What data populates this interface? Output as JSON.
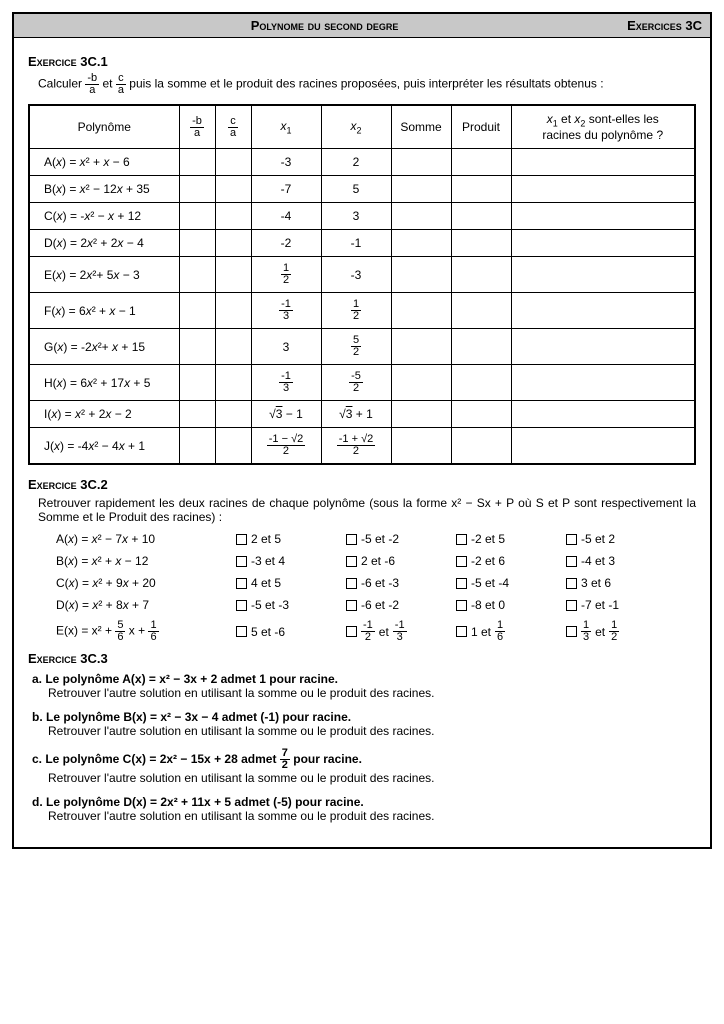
{
  "header": {
    "title": "Polynome du second degre",
    "right": "Exercices 3C"
  },
  "ex1": {
    "title": "Exercice 3C.1",
    "intro_pre": "Calculer ",
    "intro_mid": " et ",
    "intro_post": " puis la somme et le produit des racines proposées, puis interpréter les résultats obtenus :",
    "cols": {
      "poly": "Polynôme",
      "mba_num": "-b",
      "mba_den": "a",
      "ca_num": "c",
      "ca_den": "a",
      "x1": "x",
      "x2": "x",
      "som": "Somme",
      "prod": "Produit",
      "q_pre": "x",
      "q_mid": " et ",
      "q_post": " sont-elles les",
      "q_line2": "racines du polynôme ?"
    },
    "rows": [
      {
        "poly": "A(x) = x² + x − 6",
        "x1": "-3",
        "x2": "2"
      },
      {
        "poly": "B(x) = x² − 12x + 35",
        "x1": "-7",
        "x2": "5"
      },
      {
        "poly": "C(x) = -x² − x + 12",
        "x1": "-4",
        "x2": "3"
      },
      {
        "poly": "D(x) = 2x² + 2x − 4",
        "x1": "-2",
        "x2": "-1"
      },
      {
        "poly": "E(x) = 2x²+ 5x − 3",
        "x1_frac": [
          "1",
          "2"
        ],
        "x2": "-3"
      },
      {
        "poly": "F(x) = 6x² + x − 1",
        "x1_frac": [
          "-1",
          "3"
        ],
        "x2_frac": [
          "1",
          "2"
        ]
      },
      {
        "poly": "G(x) = -2x²+ x + 15",
        "x1": "3",
        "x2_frac": [
          "5",
          "2"
        ]
      },
      {
        "poly": "H(x) = 6x² + 17x + 5",
        "x1_frac": [
          "-1",
          "3"
        ],
        "x2_frac": [
          "-5",
          "2"
        ]
      },
      {
        "poly": "I(x) = x² + 2x − 2",
        "x1_sqrt": "√3 − 1",
        "x2_sqrt": "√3 + 1"
      },
      {
        "poly": "J(x) = -4x² − 4x + 1",
        "x1_frac": [
          "-1 − √2",
          "2"
        ],
        "x2_frac": [
          "-1 + √2",
          "2"
        ]
      }
    ]
  },
  "ex2": {
    "title": "Exercice 3C.2",
    "intro": "Retrouver rapidement les deux racines de chaque polynôme (sous la forme x² − Sx + P où S et P sont respectivement la Somme et le Produit des racines) :",
    "rows": [
      {
        "poly": "A(x) = x² − 7x + 10",
        "opts": [
          "2 et 5",
          "-5 et -2",
          "-2 et 5",
          "-5 et 2"
        ]
      },
      {
        "poly": "B(x) = x² + x − 12",
        "opts": [
          "-3 et 4",
          "2 et -6",
          "-2 et 6",
          "-4 et 3"
        ]
      },
      {
        "poly": "C(x) = x² + 9x + 20",
        "opts": [
          "4 et 5",
          "-6 et -3",
          "-5 et -4",
          "3 et 6"
        ]
      },
      {
        "poly": "D(x) = x² + 8x + 7",
        "opts": [
          "-5 et -3",
          "-6 et -2",
          "-8 et 0",
          "-7 et -1"
        ]
      }
    ],
    "rowE": {
      "poly_pre": "E(x) = x² + ",
      "f1": [
        "5",
        "6"
      ],
      "poly_mid": " x + ",
      "f2": [
        "1",
        "6"
      ],
      "o1": "5 et -6",
      "o2a": [
        "-1",
        "2"
      ],
      "o2mid": " et ",
      "o2b": [
        "-1",
        "3"
      ],
      "o3_pre": "1 et ",
      "o3f": [
        "1",
        "6"
      ],
      "o4a": [
        "1",
        "3"
      ],
      "o4mid": " et ",
      "o4b": [
        "1",
        "2"
      ]
    }
  },
  "ex3": {
    "title": "Exercice 3C.3",
    "a1": "a. Le polynôme A(x) = x² − 3x + 2 admet 1 pour racine.",
    "a2": "Retrouver l'autre solution en utilisant la somme ou le produit des racines.",
    "b1": "b. Le polynôme B(x) = x² − 3x − 4 admet (-1) pour racine.",
    "b2": "Retrouver l'autre solution en utilisant la somme ou le produit des racines.",
    "c1_pre": "c. Le polynôme C(x) = 2x² − 15x + 28 admet ",
    "c1_frac": [
      "7",
      "2"
    ],
    "c1_post": " pour racine.",
    "c2": "Retrouver l'autre solution en utilisant la somme ou le produit des racines.",
    "d1": "d. Le polynôme D(x) = 2x² + 11x + 5 admet (-5) pour racine.",
    "d2": "Retrouver l'autre solution en utilisant la somme ou le produit des racines."
  }
}
